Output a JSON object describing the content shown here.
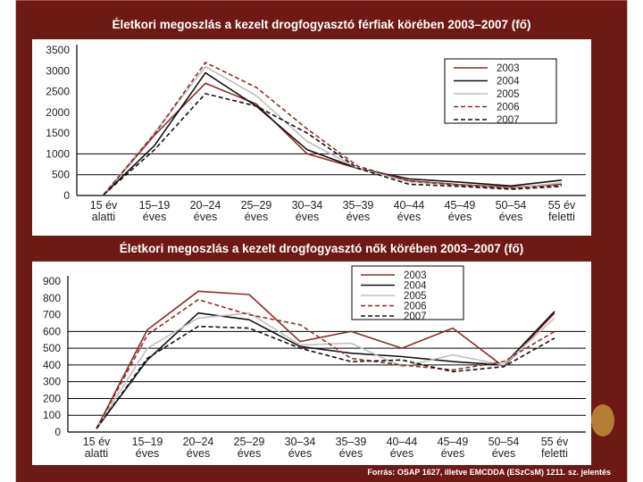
{
  "colors": {
    "frame": "#6e1a14",
    "accent_dot": "#b47e34"
  },
  "chart_data": [
    {
      "type": "line",
      "title": "Életkori megoszlás a kezelt drogfogyasztó férfiak körében 2003–2007 (fő)",
      "categories": [
        "15 év|alatti",
        "15–19|éves",
        "20–24|éves",
        "25–29|éves",
        "30–34|éves",
        "35–39|éves",
        "40–44|éves",
        "45–49|éves",
        "50–54|éves",
        "55 év|feletti"
      ],
      "y_ticks": [
        0,
        500,
        1000,
        1500,
        2000,
        2500,
        3000,
        3500
      ],
      "ylim": [
        0,
        3500
      ],
      "xlabel": "",
      "ylabel": "",
      "legend": "top-right",
      "series": [
        {
          "name": "2003",
          "color": "#8b2d25",
          "dash": "solid",
          "values": [
            20,
            1450,
            2700,
            2200,
            1000,
            650,
            350,
            260,
            200,
            270
          ]
        },
        {
          "name": "2004",
          "color": "#111111",
          "dash": "solid",
          "values": [
            20,
            1200,
            2950,
            2150,
            1100,
            650,
            400,
            320,
            230,
            370
          ]
        },
        {
          "name": "2005",
          "color": "#bfbfbf",
          "dash": "solid",
          "values": [
            20,
            1500,
            3100,
            2400,
            1300,
            650,
            330,
            240,
            180,
            300
          ]
        },
        {
          "name": "2006",
          "color": "#8b2d25",
          "dash": "dashed",
          "values": [
            20,
            1480,
            3200,
            2600,
            1600,
            700,
            350,
            250,
            170,
            250
          ]
        },
        {
          "name": "2007",
          "color": "#111111",
          "dash": "dashed",
          "values": [
            20,
            1100,
            2450,
            2150,
            1500,
            650,
            270,
            220,
            150,
            220
          ]
        }
      ]
    },
    {
      "type": "line",
      "title": "Életkori megoszlás a kezelt drogfogyasztó nők körében 2003–2007 (fő)",
      "categories": [
        "15 év|alatti",
        "15–19|éves",
        "20–24|éves",
        "25–29|éves",
        "30–34|éves",
        "35–39|éves",
        "40–44|éves",
        "45–49|éves",
        "50–54|éves",
        "55 év|feletti"
      ],
      "y_ticks": [
        0,
        100,
        200,
        300,
        400,
        500,
        600,
        700,
        800,
        900
      ],
      "ylim": [
        0,
        900
      ],
      "xlabel": "",
      "ylabel": "",
      "legend": "top-right",
      "series": [
        {
          "name": "2003",
          "color": "#8b2d25",
          "dash": "solid",
          "values": [
            20,
            610,
            840,
            820,
            540,
            600,
            500,
            620,
            390,
            710
          ]
        },
        {
          "name": "2004",
          "color": "#111111",
          "dash": "solid",
          "values": [
            20,
            430,
            710,
            670,
            510,
            470,
            450,
            420,
            400,
            720
          ]
        },
        {
          "name": "2005",
          "color": "#bfbfbf",
          "dash": "solid",
          "values": [
            20,
            500,
            680,
            710,
            520,
            530,
            390,
            460,
            400,
            680
          ]
        },
        {
          "name": "2006",
          "color": "#8b2d25",
          "dash": "dashed",
          "values": [
            20,
            580,
            790,
            700,
            640,
            440,
            400,
            370,
            420,
            600
          ]
        },
        {
          "name": "2007",
          "color": "#111111",
          "dash": "dashed",
          "values": [
            20,
            440,
            630,
            620,
            500,
            420,
            430,
            360,
            390,
            560
          ]
        }
      ]
    }
  ],
  "source": "Forrás: OSAP 1627, illetve EMCDDA (ESzCsM) 1211. sz. jelentés"
}
